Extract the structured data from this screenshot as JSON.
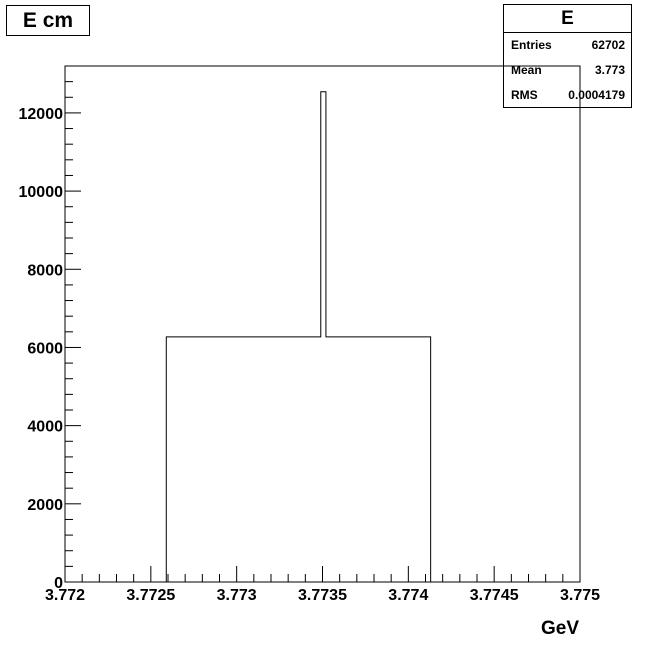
{
  "title": "E cm",
  "stats": {
    "name": "E",
    "rows": [
      {
        "label": "Entries",
        "value": "62702"
      },
      {
        "label": "Mean",
        "value": "3.773"
      },
      {
        "label": "RMS",
        "value": "0.0004179"
      }
    ]
  },
  "chart_data": {
    "type": "bar",
    "title": "E cm",
    "xlabel": "GeV",
    "ylabel": "",
    "xlim": [
      3.772,
      3.775
    ],
    "ylim": [
      0,
      13200
    ],
    "grid": false,
    "legend": "none",
    "x_ticks": [
      "3.772",
      "3.7725",
      "3.773",
      "3.7735",
      "3.774",
      "3.7745",
      "3.775"
    ],
    "x_tick_values": [
      3.772,
      3.7725,
      3.773,
      3.7735,
      3.774,
      3.7745,
      3.775
    ],
    "y_ticks": [
      "0",
      "2000",
      "4000",
      "6000",
      "8000",
      "10000",
      "12000"
    ],
    "y_tick_values": [
      0,
      2000,
      4000,
      6000,
      8000,
      10000,
      12000
    ],
    "bins": [
      {
        "x0": 3.77259,
        "x1": 3.77262,
        "value": 6270
      },
      {
        "x0": 3.77284,
        "x1": 3.77287,
        "value": 6270
      },
      {
        "x0": 3.77298,
        "x1": 3.77302,
        "value": 6270
      },
      {
        "x0": 3.77322,
        "x1": 3.77325,
        "value": 6270
      },
      {
        "x0": 3.77325,
        "x1": 3.77328,
        "value": 6270
      },
      {
        "x0": 3.77349,
        "x1": 3.77352,
        "value": 12540
      },
      {
        "x0": 3.77352,
        "x1": 3.77356,
        "value": 6270
      },
      {
        "x0": 3.77364,
        "x1": 3.77368,
        "value": 6270
      },
      {
        "x0": 3.77409,
        "x1": 3.77413,
        "value": 6270
      }
    ]
  }
}
